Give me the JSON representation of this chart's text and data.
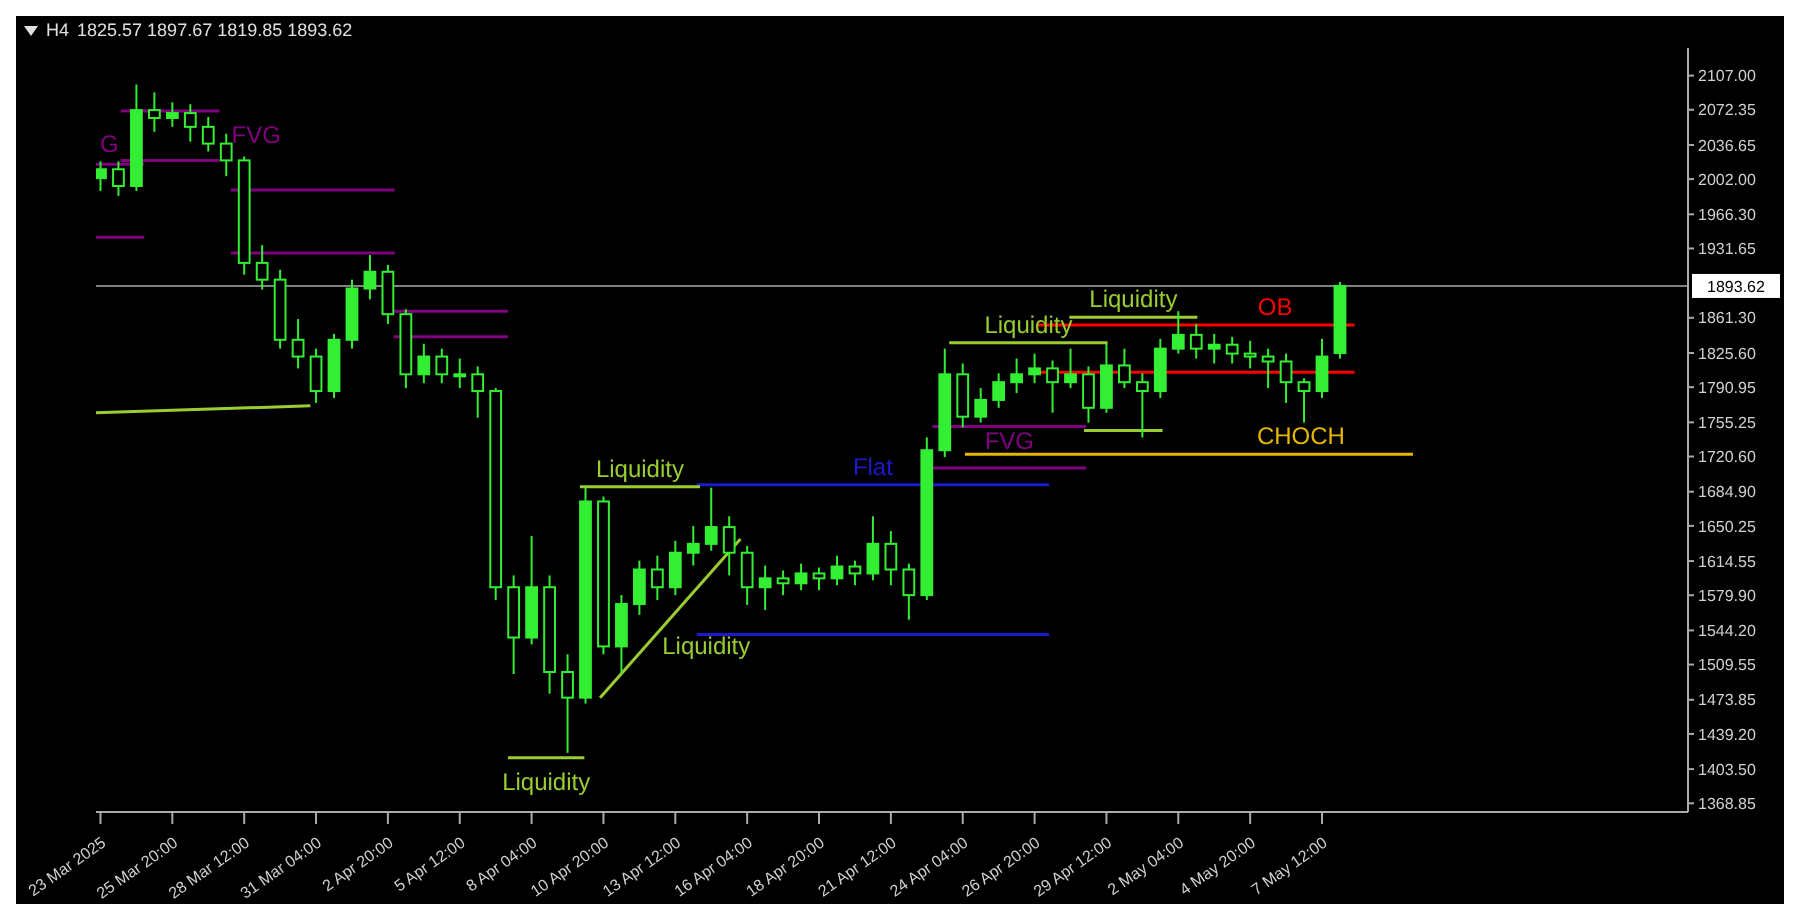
{
  "chart_data": {
    "type": "candlestick",
    "title": "H4",
    "color": "#33ee33",
    "x": [
      "2025-03-23T04:00",
      "2025-03-23T20:00",
      "2025-03-24T12:00",
      "2025-03-25T04:00",
      "2025-03-25T20:00",
      "2025-03-26T12:00",
      "2025-03-27T04:00",
      "2025-03-27T20:00",
      "2025-03-28T12:00",
      "2025-03-29T04:00",
      "2025-03-29T20:00",
      "2025-03-30T12:00",
      "2025-03-31T04:00",
      "2025-03-31T20:00",
      "2025-04-01T12:00",
      "2025-04-02T04:00",
      "2025-04-02T20:00",
      "2025-04-03T12:00",
      "2025-04-04T04:00",
      "2025-04-04T20:00",
      "2025-04-05T12:00",
      "2025-04-06T04:00",
      "2025-04-06T20:00",
      "2025-04-07T12:00",
      "2025-04-08T04:00",
      "2025-04-08T20:00",
      "2025-04-09T12:00",
      "2025-04-10T04:00",
      "2025-04-10T20:00",
      "2025-04-11T12:00",
      "2025-04-12T04:00",
      "2025-04-12T20:00",
      "2025-04-13T12:00",
      "2025-04-14T04:00",
      "2025-04-14T20:00",
      "2025-04-15T12:00",
      "2025-04-16T04:00",
      "2025-04-16T20:00",
      "2025-04-17T12:00",
      "2025-04-18T04:00",
      "2025-04-18T20:00",
      "2025-04-19T12:00",
      "2025-04-20T04:00",
      "2025-04-20T20:00",
      "2025-04-21T12:00",
      "2025-04-22T04:00",
      "2025-04-22T20:00",
      "2025-04-23T12:00",
      "2025-04-24T04:00",
      "2025-04-24T20:00",
      "2025-04-25T12:00",
      "2025-04-26T04:00",
      "2025-04-26T20:00",
      "2025-04-27T12:00",
      "2025-04-28T04:00",
      "2025-04-28T20:00",
      "2025-04-29T12:00",
      "2025-04-30T04:00",
      "2025-04-30T20:00",
      "2025-05-01T12:00",
      "2025-05-02T04:00",
      "2025-05-02T20:00",
      "2025-05-03T12:00",
      "2025-05-04T04:00",
      "2025-05-04T20:00",
      "2025-05-05T12:00",
      "2025-05-06T04:00",
      "2025-05-06T20:00",
      "2025-05-07T12:00",
      "2025-05-08T04:00"
    ],
    "ohlc": [
      [
        2003,
        2020,
        1990,
        2012
      ],
      [
        2012,
        2020,
        1985,
        1995
      ],
      [
        1995,
        2098,
        1990,
        2072
      ],
      [
        2072,
        2090,
        2050,
        2064
      ],
      [
        2064,
        2080,
        2055,
        2069
      ],
      [
        2069,
        2078,
        2040,
        2055
      ],
      [
        2055,
        2065,
        2030,
        2038
      ],
      [
        2038,
        2048,
        2005,
        2021
      ],
      [
        2021,
        2025,
        1905,
        1917
      ],
      [
        1917,
        1935,
        1890,
        1900
      ],
      [
        1900,
        1910,
        1830,
        1839
      ],
      [
        1839,
        1860,
        1810,
        1822
      ],
      [
        1822,
        1830,
        1775,
        1787
      ],
      [
        1787,
        1845,
        1780,
        1839
      ],
      [
        1839,
        1900,
        1830,
        1891
      ],
      [
        1891,
        1925,
        1880,
        1908
      ],
      [
        1908,
        1915,
        1855,
        1865
      ],
      [
        1865,
        1870,
        1790,
        1804
      ],
      [
        1804,
        1835,
        1795,
        1822
      ],
      [
        1822,
        1830,
        1795,
        1804
      ],
      [
        1804,
        1820,
        1790,
        1804
      ],
      [
        1804,
        1812,
        1760,
        1787
      ],
      [
        1787,
        1790,
        1575,
        1588
      ],
      [
        1588,
        1600,
        1500,
        1537
      ],
      [
        1537,
        1640,
        1530,
        1588
      ],
      [
        1588,
        1600,
        1480,
        1502
      ],
      [
        1502,
        1520,
        1420,
        1476
      ],
      [
        1476,
        1689,
        1470,
        1675
      ],
      [
        1675,
        1680,
        1520,
        1528
      ],
      [
        1528,
        1580,
        1500,
        1571
      ],
      [
        1571,
        1615,
        1560,
        1606
      ],
      [
        1606,
        1620,
        1575,
        1588
      ],
      [
        1588,
        1635,
        1580,
        1623
      ],
      [
        1623,
        1650,
        1610,
        1632
      ],
      [
        1632,
        1689,
        1625,
        1649
      ],
      [
        1649,
        1660,
        1600,
        1623
      ],
      [
        1623,
        1630,
        1570,
        1588
      ],
      [
        1588,
        1610,
        1565,
        1597
      ],
      [
        1597,
        1605,
        1580,
        1592
      ],
      [
        1592,
        1612,
        1585,
        1602
      ],
      [
        1602,
        1608,
        1585,
        1597
      ],
      [
        1597,
        1620,
        1590,
        1609
      ],
      [
        1609,
        1615,
        1590,
        1602
      ],
      [
        1602,
        1660,
        1595,
        1632
      ],
      [
        1632,
        1645,
        1590,
        1606
      ],
      [
        1606,
        1612,
        1555,
        1580
      ],
      [
        1580,
        1740,
        1575,
        1727
      ],
      [
        1727,
        1830,
        1720,
        1804
      ],
      [
        1804,
        1815,
        1750,
        1761
      ],
      [
        1761,
        1790,
        1755,
        1778
      ],
      [
        1778,
        1805,
        1770,
        1796
      ],
      [
        1796,
        1820,
        1785,
        1804
      ],
      [
        1804,
        1825,
        1795,
        1810
      ],
      [
        1810,
        1818,
        1765,
        1796
      ],
      [
        1796,
        1830,
        1790,
        1804
      ],
      [
        1804,
        1812,
        1755,
        1770
      ],
      [
        1770,
        1835,
        1765,
        1813
      ],
      [
        1813,
        1830,
        1790,
        1796
      ],
      [
        1796,
        1805,
        1740,
        1787
      ],
      [
        1787,
        1840,
        1780,
        1830
      ],
      [
        1830,
        1868,
        1825,
        1844
      ],
      [
        1844,
        1855,
        1820,
        1830
      ],
      [
        1830,
        1845,
        1815,
        1834
      ],
      [
        1834,
        1842,
        1815,
        1825
      ],
      [
        1825,
        1838,
        1810,
        1822
      ],
      [
        1822,
        1830,
        1790,
        1817
      ],
      [
        1817,
        1825,
        1775,
        1796
      ],
      [
        1796,
        1800,
        1755,
        1787
      ],
      [
        1787,
        1840,
        1780,
        1822
      ],
      [
        1825.57,
        1897.67,
        1819.85,
        1893.62
      ]
    ],
    "series": [
      {
        "type": "line",
        "name": "G",
        "color": "#800080",
        "x": [
          "2025-03-23T00:00",
          "2025-03-24T19:00"
        ],
        "values": [
          2017,
          2017
        ]
      },
      {
        "type": "line",
        "color": "#800080",
        "x": [
          "2025-03-23T00:00",
          "2025-03-24T19:00"
        ],
        "values": [
          1943,
          1943
        ]
      },
      {
        "type": "line",
        "name": "FVG",
        "color": "#800080",
        "x": [
          "2025-03-23T22:00",
          "2025-03-27T14:00"
        ],
        "values": [
          2071,
          2071
        ]
      },
      {
        "type": "line",
        "color": "#800080",
        "x": [
          "2025-03-23T22:00",
          "2025-03-27T14:00"
        ],
        "values": [
          2021,
          2021
        ]
      },
      {
        "type": "line",
        "color": "#800080",
        "x": [
          "2025-03-28T00:00",
          "2025-04-03T02:00"
        ],
        "values": [
          1991,
          1991
        ]
      },
      {
        "type": "line",
        "color": "#800080",
        "x": [
          "2025-03-28T00:00",
          "2025-04-03T02:00"
        ],
        "values": [
          1927,
          1927
        ]
      },
      {
        "type": "line",
        "color": "#800080",
        "x": [
          "2025-04-03T01:00",
          "2025-04-07T07:00"
        ],
        "values": [
          1868,
          1868
        ]
      },
      {
        "type": "line",
        "color": "#800080",
        "x": [
          "2025-04-03T01:00",
          "2025-04-07T07:00"
        ],
        "values": [
          1842,
          1842
        ]
      },
      {
        "type": "line",
        "name": "Flat",
        "color": "#1a1acc",
        "x": [
          "2025-04-14T07:00",
          "2025-04-27T09:00"
        ],
        "values": [
          1692,
          1692
        ]
      },
      {
        "type": "line",
        "color": "#1a1acc",
        "x": [
          "2025-04-14T07:00",
          "2025-04-27T09:00"
        ],
        "values": [
          1540,
          1540
        ]
      },
      {
        "type": "line",
        "name": "FVG",
        "color": "#800080",
        "x": [
          "2025-04-23T01:00",
          "2025-04-28T18:00"
        ],
        "values": [
          1751,
          1751
        ]
      },
      {
        "type": "line",
        "color": "#800080",
        "x": [
          "2025-04-23T01:00",
          "2025-04-28T18:00"
        ],
        "values": [
          1709,
          1709
        ]
      },
      {
        "type": "line",
        "name": "OB",
        "color": "#ff0000",
        "x": [
          "2025-04-26T22:00",
          "2025-05-08T17:00"
        ],
        "values": [
          1854,
          1854
        ]
      },
      {
        "type": "line",
        "color": "#ff0000",
        "x": [
          "2025-04-26T22:00",
          "2025-05-08T17:00"
        ],
        "values": [
          1806,
          1806
        ]
      },
      {
        "type": "line",
        "name": "CHOCH",
        "color": "#e6b800",
        "x": [
          "2025-04-24T06:00",
          "2025-05-10T21:00"
        ],
        "values": [
          1723,
          1723
        ]
      },
      {
        "type": "line",
        "color": "#9acd32",
        "x": [
          "2025-03-23T00:00",
          "2025-03-30T23:00"
        ],
        "values": [
          1765,
          1772
        ]
      },
      {
        "type": "line",
        "name": "Liquidity",
        "color": "#9acd32",
        "x": [
          "2025-04-07T07:00",
          "2025-04-10T03:00"
        ],
        "values": [
          1415,
          1415
        ]
      },
      {
        "type": "line",
        "name": "Liquidity",
        "color": "#9acd32",
        "x": [
          "2025-04-09T23:00",
          "2025-04-14T10:00"
        ],
        "values": [
          1690,
          1690
        ]
      },
      {
        "type": "line",
        "name": "Liquidity",
        "color": "#9acd32",
        "x": [
          "2025-04-10T17:00",
          "2025-04-15T22:00"
        ],
        "values": [
          1476,
          1637
        ]
      },
      {
        "type": "line",
        "name": "Liquidity",
        "color": "#9acd32",
        "x": [
          "2025-04-23T16:00",
          "2025-04-29T13:00"
        ],
        "values": [
          1836,
          1836
        ]
      },
      {
        "type": "line",
        "name": "Liquidity",
        "color": "#9acd32",
        "x": [
          "2025-04-28T03:00",
          "2025-05-02T21:00"
        ],
        "values": [
          1862,
          1862
        ]
      },
      {
        "type": "line",
        "color": "#9acd32",
        "x": [
          "2025-04-28T16:00",
          "2025-05-01T14:00"
        ],
        "values": [
          1747,
          1747
        ]
      }
    ],
    "annotations": [
      "1825.57 1897.67 1819.85 1893.62"
    ],
    "ref_lines": [
      {
        "axis": "y",
        "value": 1893.62,
        "label": "1893.62",
        "color": "#808080"
      }
    ],
    "xlim": [
      "2025-03-23T00:00",
      "2025-05-21T02:00"
    ],
    "xticks": [
      {
        "value": "2025-03-23T04:00",
        "label": "23 Mar 2025"
      },
      {
        "value": "2025-03-25T20:00",
        "label": "25 Mar 20:00"
      },
      {
        "value": "2025-03-28T12:00",
        "label": "28 Mar 12:00"
      },
      {
        "value": "2025-03-31T04:00",
        "label": "31 Mar 04:00"
      },
      {
        "value": "2025-04-02T20:00",
        "label": "2 Apr 20:00"
      },
      {
        "value": "2025-04-05T12:00",
        "label": "5 Apr 12:00"
      },
      {
        "value": "2025-04-08T04:00",
        "label": "8 Apr 04:00"
      },
      {
        "value": "2025-04-10T20:00",
        "label": "10 Apr 20:00"
      },
      {
        "value": "2025-04-13T12:00",
        "label": "13 Apr 12:00"
      },
      {
        "value": "2025-04-16T04:00",
        "label": "16 Apr 04:00"
      },
      {
        "value": "2025-04-18T20:00",
        "label": "18 Apr 20:00"
      },
      {
        "value": "2025-04-21T12:00",
        "label": "21 Apr 12:00"
      },
      {
        "value": "2025-04-24T04:00",
        "label": "24 Apr 04:00"
      },
      {
        "value": "2025-04-26T20:00",
        "label": "26 Apr 20:00"
      },
      {
        "value": "2025-04-29T12:00",
        "label": "29 Apr 12:00"
      },
      {
        "value": "2025-05-02T04:00",
        "label": "2 May 04:00"
      },
      {
        "value": "2025-05-04T20:00",
        "label": "4 May 20:00"
      },
      {
        "value": "2025-05-07T12:00",
        "label": "7 May 12:00"
      }
    ],
    "ylim": [
      1360,
      2135
    ],
    "yticks": [
      {
        "value": 2107,
        "label": "2107.00"
      },
      2072.35,
      2036.65,
      {
        "value": 2002,
        "label": "2002.00"
      },
      {
        "value": 1966.3,
        "label": "1966.30"
      },
      1931.65,
      {
        "value": 1861.3,
        "label": "1861.30"
      },
      {
        "value": 1825.6,
        "label": "1825.60"
      },
      1790.95,
      1755.25,
      {
        "value": 1720.6,
        "label": "1720.60"
      },
      {
        "value": 1684.9,
        "label": "1684.90"
      },
      1650.25,
      1614.55,
      {
        "value": 1579.9,
        "label": "1579.90"
      },
      {
        "value": 1544.2,
        "label": "1544.20"
      },
      1509.55,
      1473.85,
      {
        "value": 1439.2,
        "label": "1439.20"
      },
      {
        "value": 1403.5,
        "label": "1403.50"
      },
      1368.85
    ]
  }
}
